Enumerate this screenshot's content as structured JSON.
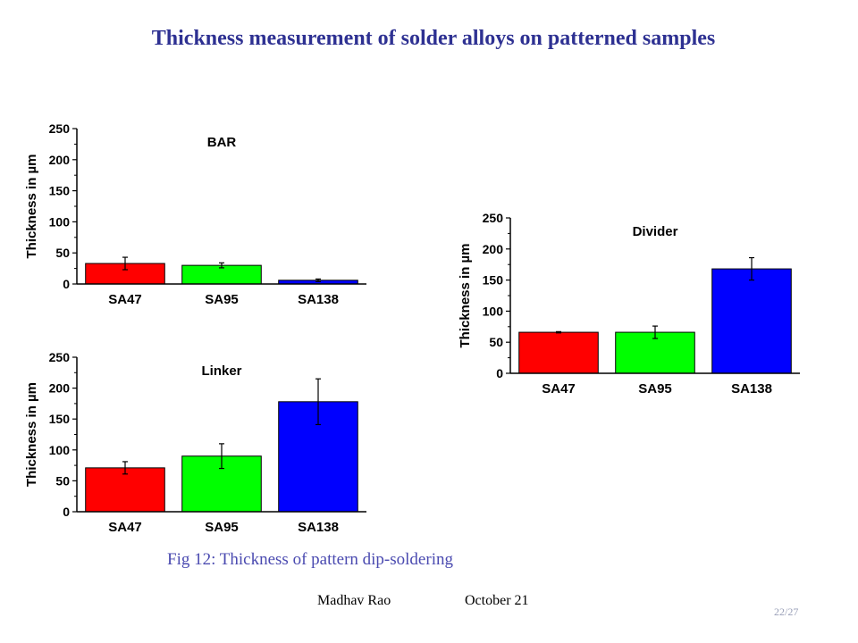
{
  "slide": {
    "title": "Thickness measurement of solder alloys on patterned samples",
    "caption": "Fig 12: Thickness of  pattern dip-soldering",
    "author": "Madhav Rao",
    "date": "October 21",
    "page": "22/27"
  },
  "colors": {
    "SA47": "#ff0000",
    "SA95": "#00ff00",
    "SA138": "#0000ff"
  },
  "chart_data": [
    {
      "type": "bar",
      "title": "BAR",
      "categories": [
        "SA47",
        "SA95",
        "SA138"
      ],
      "values": [
        33,
        30,
        6
      ],
      "errors": [
        10,
        4,
        2
      ],
      "ylabel": "Thickness in µm",
      "ylim": [
        0,
        250
      ],
      "yticks": [
        0,
        50,
        100,
        150,
        200,
        250
      ],
      "grid": false
    },
    {
      "type": "bar",
      "title": "Linker",
      "categories": [
        "SA47",
        "SA95",
        "SA138"
      ],
      "values": [
        71,
        90,
        178
      ],
      "errors": [
        10,
        20,
        37
      ],
      "ylabel": "Thickness in µm",
      "ylim": [
        0,
        250
      ],
      "yticks": [
        0,
        50,
        100,
        150,
        200,
        250
      ],
      "grid": false
    },
    {
      "type": "bar",
      "title": "Divider",
      "categories": [
        "SA47",
        "SA95",
        "SA138"
      ],
      "values": [
        66,
        66,
        168
      ],
      "errors": [
        1,
        10,
        18
      ],
      "ylabel": "Thickness in µm",
      "ylim": [
        0,
        250
      ],
      "yticks": [
        0,
        50,
        100,
        150,
        200,
        250
      ],
      "grid": false
    }
  ]
}
